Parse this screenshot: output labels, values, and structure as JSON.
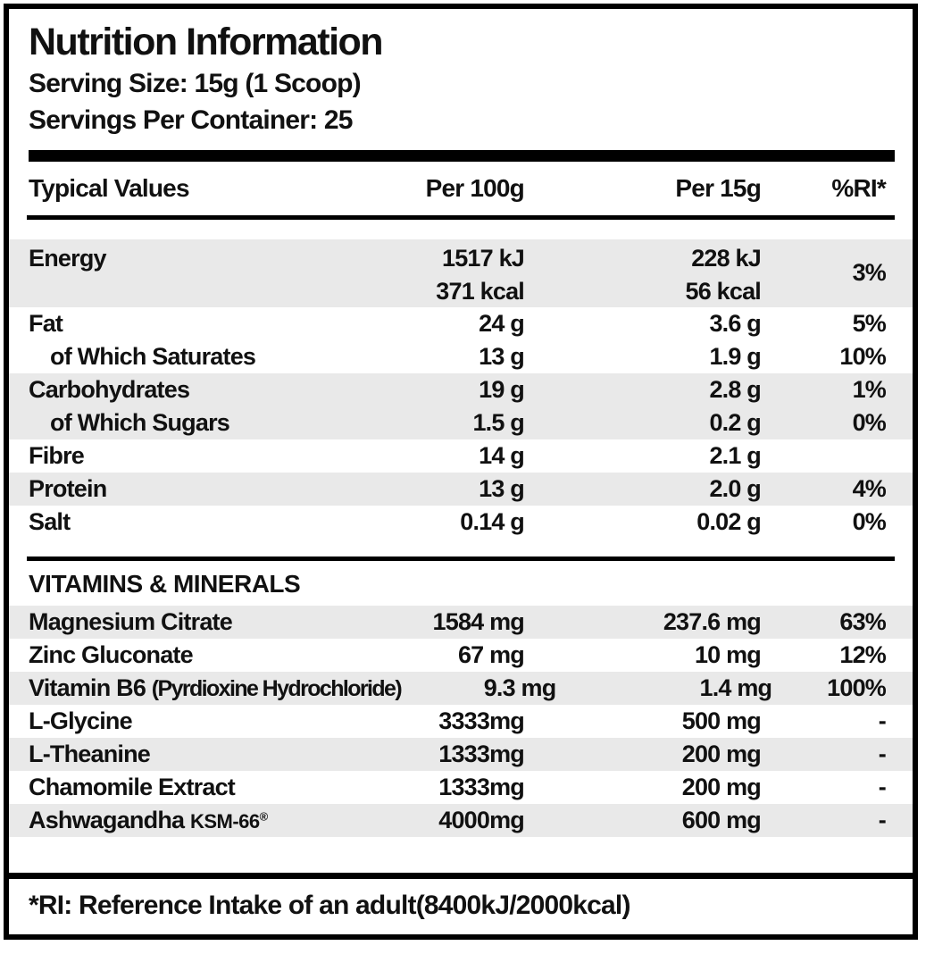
{
  "header": {
    "title": "Nutrition Information",
    "serving_size": "Serving Size: 15g (1 Scoop)",
    "servings_per_container": "Servings Per Container: 25"
  },
  "colors": {
    "stripe": "#e9e9e9",
    "text": "#111111",
    "border": "#000000"
  },
  "table": {
    "columns": {
      "name": "Typical Values",
      "per100": "Per 100g",
      "per15": "Per 15g",
      "ri": "%RI*"
    },
    "energy": {
      "name": "Energy",
      "per100_kj": "1517 kJ",
      "per100_kcal": "371 kcal",
      "per15_kj": "228 kJ",
      "per15_kcal": "56 kcal",
      "ri": "3%"
    },
    "rows": [
      {
        "name": "Fat",
        "per100": "24 g",
        "per15": "3.6 g",
        "ri": "5%"
      },
      {
        "name": "of Which Saturates",
        "per100": "13 g",
        "per15": "1.9 g",
        "ri": "10%"
      },
      {
        "name": "Carbohydrates",
        "per100": "19 g",
        "per15": "2.8 g",
        "ri": "1%"
      },
      {
        "name": "of Which Sugars",
        "per100": "1.5 g",
        "per15": "0.2 g",
        "ri": "0%"
      },
      {
        "name": "Fibre",
        "per100": "14 g",
        "per15": "2.1 g",
        "ri": ""
      },
      {
        "name": "Protein",
        "per100": "13 g",
        "per15": "2.0 g",
        "ri": "4%"
      },
      {
        "name": "Salt",
        "per100": "0.14 g",
        "per15": "0.02 g",
        "ri": "0%"
      }
    ]
  },
  "vitamins": {
    "heading": "VITAMINS & MINERALS",
    "rows": [
      {
        "name": "Magnesium Citrate",
        "per100": "1584 mg",
        "per15": "237.6 mg",
        "ri": "63%"
      },
      {
        "name": "Zinc Gluconate",
        "per100": "67 mg",
        "per15": "10 mg",
        "ri": "12%"
      },
      {
        "name": "Vitamin B6",
        "paren": "(Pyrdioxine Hydrochloride)",
        "per100": "9.3 mg",
        "per15": "1.4 mg",
        "ri": "100%"
      },
      {
        "name": "L-Glycine",
        "per100": "3333mg",
        "per15": "500 mg",
        "ri": "-"
      },
      {
        "name": "L-Theanine",
        "per100": "1333mg",
        "per15": "200 mg",
        "ri": "-"
      },
      {
        "name": "Chamomile Extract",
        "per100": "1333mg",
        "per15": "200 mg",
        "ri": "-"
      },
      {
        "name": "Ashwagandha",
        "brand": "KSM-66",
        "reg": "®",
        "per100": "4000mg",
        "per15": "600 mg",
        "ri": "-"
      }
    ]
  },
  "footer": {
    "note": "*RI: Reference Intake of an adult(8400kJ/2000kcal)"
  }
}
